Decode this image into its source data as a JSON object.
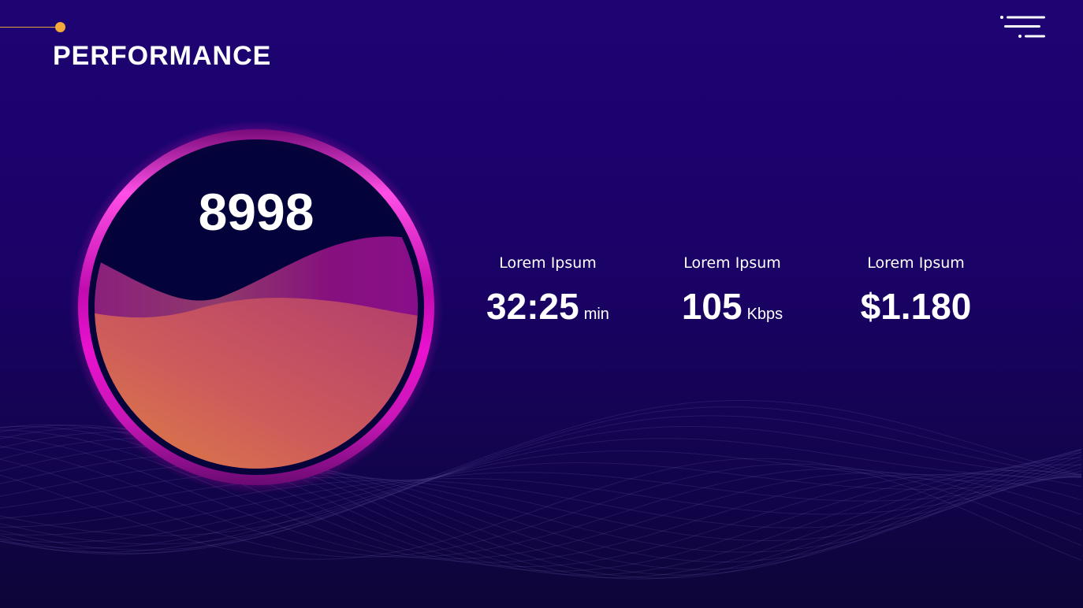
{
  "header": {
    "title": "PERFORMANCE"
  },
  "gauge": {
    "value": "8998"
  },
  "stats": [
    {
      "label": "Lorem Ipsum",
      "value": "32:25",
      "unit": "min"
    },
    {
      "label": "Lorem Ipsum",
      "value": "105",
      "unit": "Kbps"
    },
    {
      "label": "Lorem Ipsum",
      "value": "$1.180",
      "unit": ""
    }
  ],
  "colors": {
    "background": "#1e0373",
    "accent_dot": "#f4a93b",
    "ring_magenta": "#e80fc8",
    "gauge_inner": "#05033a",
    "wave_orange": "#e0823f",
    "wave_pink": "#c24a6a",
    "wave_purple": "#8a1290"
  },
  "icons": {
    "menu": "menu-icon"
  }
}
